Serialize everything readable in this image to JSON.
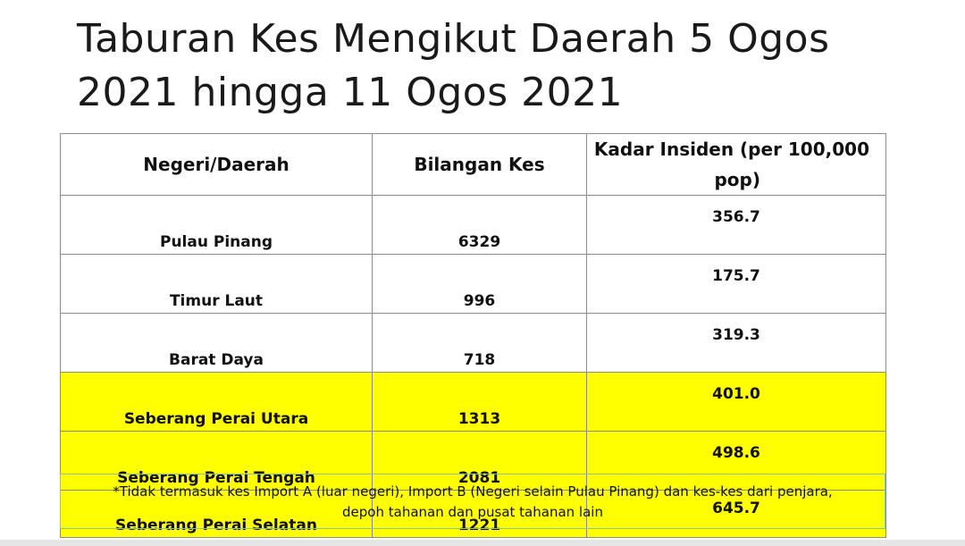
{
  "slide": {
    "title_line1": "Taburan Kes Mengikut Daerah  5 Ogos",
    "title_line2": "2021 hingga 11 Ogos 2021"
  },
  "table": {
    "headers": {
      "region": "Negeri/Daerah",
      "cases": "Bilangan Kes",
      "rate_line1": "Kadar Insiden (per 100,000",
      "rate_line2": "pop)"
    },
    "rows": [
      {
        "region": "Pulau Pinang",
        "cases": "6329",
        "rate": "356.7",
        "highlight": false
      },
      {
        "region": "Timur Laut",
        "cases": "996",
        "rate": "175.7",
        "highlight": false
      },
      {
        "region": "Barat Daya",
        "cases": "718",
        "rate": "319.3",
        "highlight": false
      },
      {
        "region": "Seberang Perai Utara",
        "cases": "1313",
        "rate": "401.0",
        "highlight": true
      },
      {
        "region": "Seberang Perai Tengah",
        "cases": "2081",
        "rate": "498.6",
        "highlight": true
      },
      {
        "region": "Seberang Perai Selatan",
        "cases": "1221",
        "rate": "645.7",
        "highlight": true
      }
    ],
    "highlight_color": "#ffff00"
  },
  "footnote": {
    "line1": "*Tidak termasuk kes Import A (luar negeri), Import B (Negeri selain Pulau Pinang) dan kes-kes dari penjara,",
    "line2": "depoh tahanan dan pusat tahanan lain"
  }
}
